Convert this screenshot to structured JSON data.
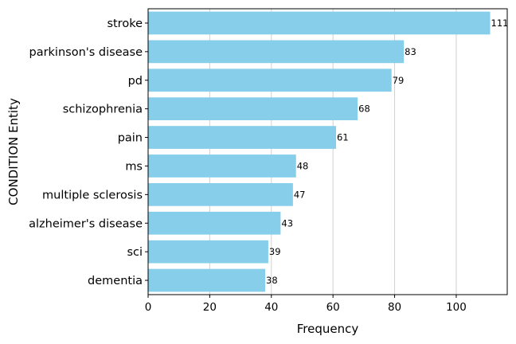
{
  "chart_data": {
    "type": "bar",
    "orientation": "horizontal",
    "categories": [
      "stroke",
      "parkinson's disease",
      "pd",
      "schizophrenia",
      "pain",
      "ms",
      "multiple sclerosis",
      "alzheimer's disease",
      "sci",
      "dementia"
    ],
    "values": [
      111,
      83,
      79,
      68,
      61,
      48,
      47,
      43,
      39,
      38
    ],
    "xlabel": "Frequency",
    "ylabel": "CONDITION Entity",
    "xlim": [
      0,
      116.55
    ],
    "xticks": [
      0,
      20,
      40,
      60,
      80,
      100
    ],
    "grid": "vertical",
    "bar_color": "#87ceeb",
    "data_labels": true
  }
}
